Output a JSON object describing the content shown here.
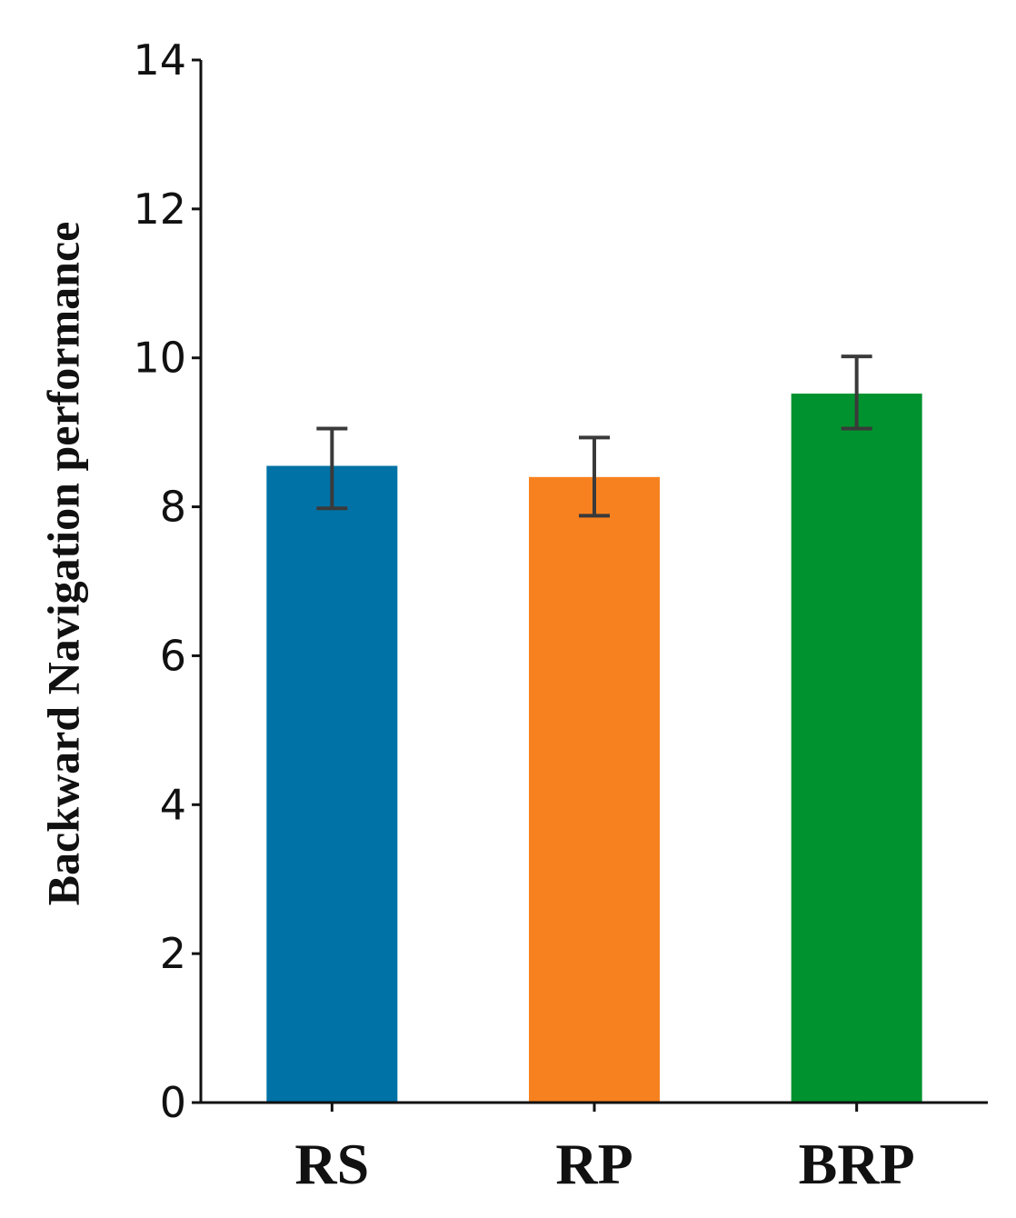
{
  "chart_data": {
    "type": "bar",
    "categories": [
      "RS",
      "RP",
      "BRP"
    ],
    "values": [
      8.55,
      8.4,
      9.52
    ],
    "error": [
      {
        "low": 7.98,
        "high": 9.05
      },
      {
        "low": 7.88,
        "high": 8.93
      },
      {
        "low": 9.05,
        "high": 10.02
      }
    ],
    "colors": [
      "#0072a6",
      "#f8811f",
      "#00922e"
    ],
    "error_color": "#3a3a3a",
    "title": "",
    "xlabel": "",
    "ylabel": "Backward Navigation performance",
    "ylim": [
      0,
      14
    ],
    "yticks": [
      0,
      2,
      4,
      6,
      8,
      10,
      12,
      14
    ],
    "grid": false,
    "legend": "none"
  }
}
